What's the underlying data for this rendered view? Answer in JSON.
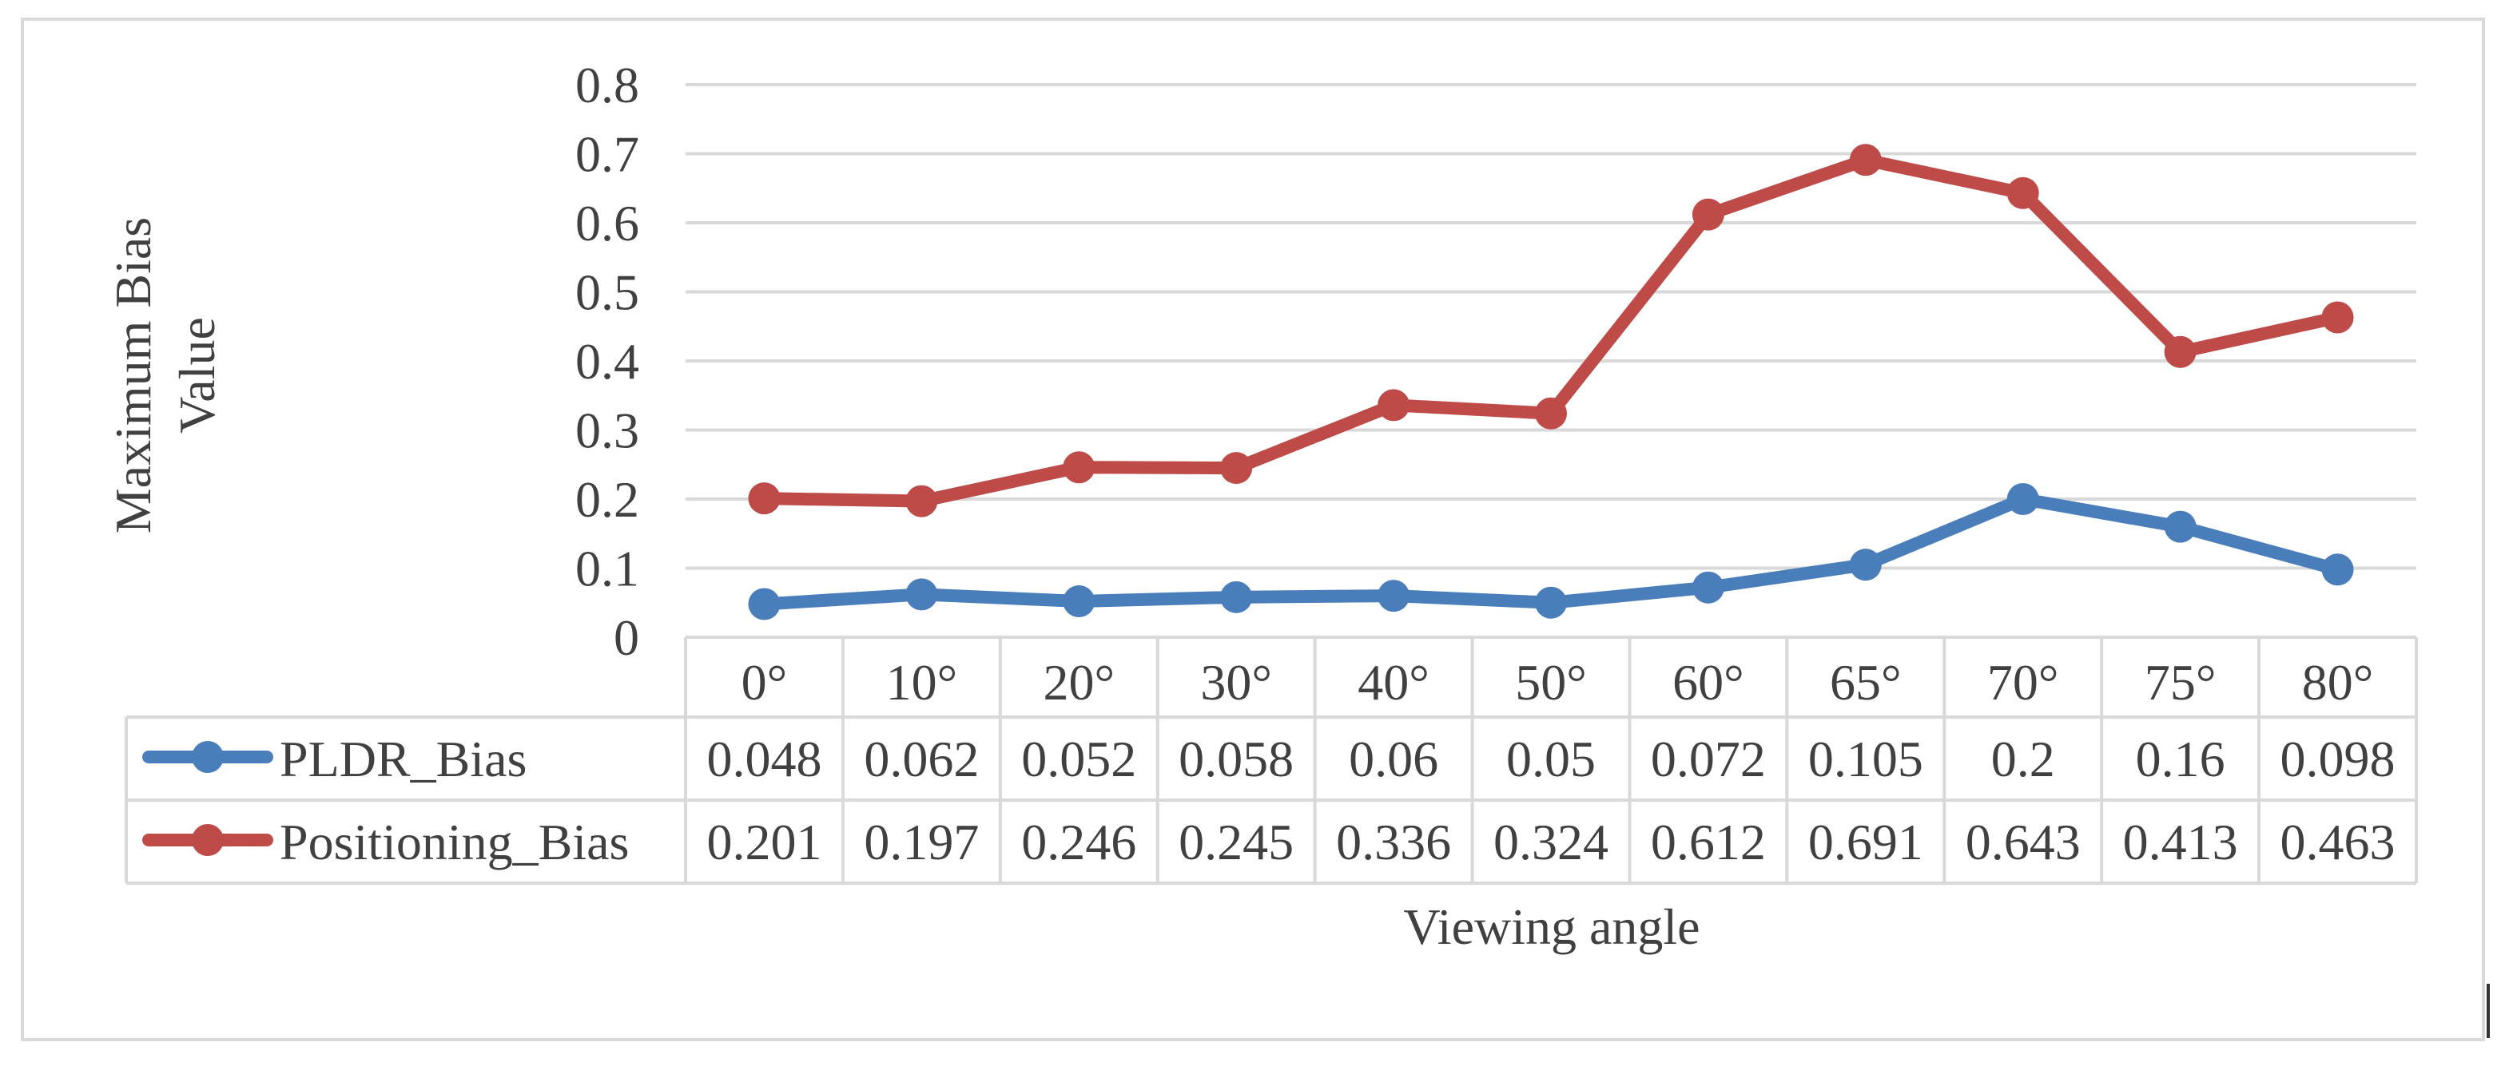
{
  "chart_data": {
    "type": "line",
    "title": "",
    "xlabel": "Viewing angle",
    "ylabel_lines": [
      "Maximum Bias",
      "Value"
    ],
    "ylim": [
      0,
      0.8
    ],
    "yticks": [
      "0",
      "0.1",
      "0.2",
      "0.3",
      "0.4",
      "0.5",
      "0.6",
      "0.7",
      "0.8"
    ],
    "categories": [
      "0°",
      "10°",
      "20°",
      "30°",
      "40°",
      "50°",
      "60°",
      "65°",
      "70°",
      "75°",
      "80°"
    ],
    "grid": true,
    "legend": "data-table",
    "series": [
      {
        "name": "PLDR_Bias",
        "color": "#4a7ebb",
        "values": [
          0.048,
          0.062,
          0.052,
          0.058,
          0.06,
          0.05,
          0.072,
          0.105,
          0.2,
          0.16,
          0.098
        ],
        "labels": [
          "0.048",
          "0.062",
          "0.052",
          "0.058",
          "0.06",
          "0.05",
          "0.072",
          "0.105",
          "0.2",
          "0.16",
          "0.098"
        ]
      },
      {
        "name": "Positioning_Bias",
        "color": "#be4b48",
        "values": [
          0.201,
          0.197,
          0.246,
          0.245,
          0.336,
          0.324,
          0.612,
          0.691,
          0.643,
          0.413,
          0.463
        ],
        "labels": [
          "0.201",
          "0.197",
          "0.246",
          "0.245",
          "0.336",
          "0.324",
          "0.612",
          "0.691",
          "0.643",
          "0.413",
          "0.463"
        ]
      }
    ]
  }
}
